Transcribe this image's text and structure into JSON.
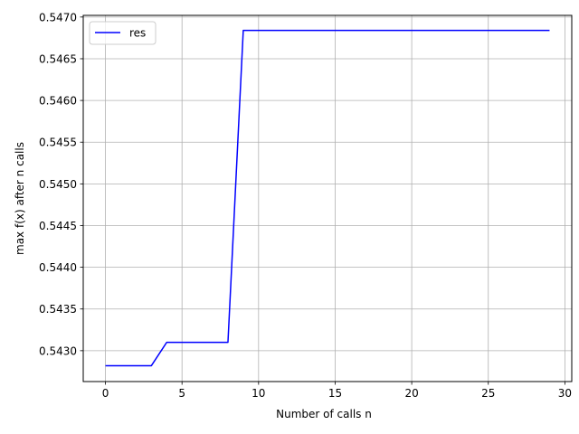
{
  "chart_data": {
    "type": "line",
    "title": "",
    "xlabel": "Number of calls n",
    "ylabel": "max f(x) after n calls",
    "xlim": [
      -1.45,
      30.45
    ],
    "ylim": [
      0.54263,
      0.54702
    ],
    "x_ticks": [
      0,
      5,
      10,
      15,
      20,
      25,
      30
    ],
    "y_ticks": [
      0.543,
      0.5435,
      0.544,
      0.5445,
      0.545,
      0.5455,
      0.546,
      0.5465,
      0.547
    ],
    "x_tick_labels": [
      "0",
      "5",
      "10",
      "15",
      "20",
      "25",
      "30"
    ],
    "y_tick_labels": [
      "0.5430",
      "0.5435",
      "0.5440",
      "0.5445",
      "0.5450",
      "0.5455",
      "0.5460",
      "0.5465",
      "0.5470"
    ],
    "grid": true,
    "legend_position": "upper-left",
    "series": [
      {
        "name": "res",
        "color": "#0000ff",
        "x": [
          0,
          1,
          2,
          3,
          4,
          5,
          6,
          7,
          8,
          9,
          10,
          11,
          12,
          13,
          14,
          15,
          16,
          17,
          18,
          19,
          20,
          21,
          22,
          23,
          24,
          25,
          26,
          27,
          28,
          29
        ],
        "y": [
          0.54282,
          0.54282,
          0.54282,
          0.54282,
          0.5431,
          0.5431,
          0.5431,
          0.5431,
          0.5431,
          0.54684,
          0.54684,
          0.54684,
          0.54684,
          0.54684,
          0.54684,
          0.54684,
          0.54684,
          0.54684,
          0.54684,
          0.54684,
          0.54684,
          0.54684,
          0.54684,
          0.54684,
          0.54684,
          0.54684,
          0.54684,
          0.54684,
          0.54684,
          0.54684
        ]
      }
    ]
  }
}
